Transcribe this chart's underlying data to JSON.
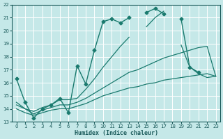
{
  "xlabel": "Humidex (Indice chaleur)",
  "bg_color": "#c5e8e8",
  "grid_color": "#ffffff",
  "line_color": "#1a7a6e",
  "xlim": [
    -0.5,
    23.5
  ],
  "ylim": [
    13,
    22
  ],
  "yticks": [
    13,
    14,
    15,
    16,
    17,
    18,
    19,
    20,
    21,
    22
  ],
  "xticks": [
    0,
    1,
    2,
    3,
    4,
    5,
    6,
    7,
    8,
    9,
    10,
    11,
    12,
    13,
    14,
    15,
    16,
    17,
    18,
    19,
    20,
    21,
    22,
    23
  ],
  "lines": [
    {
      "x": [
        0,
        1,
        2,
        3,
        4,
        5,
        6,
        7,
        8,
        9,
        10,
        11,
        12,
        13,
        15,
        16,
        17,
        19,
        20,
        21
      ],
      "y": [
        16.3,
        14.5,
        13.3,
        14.0,
        14.3,
        14.8,
        13.7,
        17.3,
        15.9,
        18.5,
        20.7,
        20.9,
        20.6,
        21.0,
        21.4,
        21.7,
        21.3,
        20.9,
        17.2,
        16.8
      ],
      "segments": [
        {
          "x": [
            0,
            1,
            2,
            3,
            4,
            5,
            6,
            7,
            8,
            9,
            10,
            11,
            12,
            13
          ],
          "y": [
            16.3,
            14.5,
            13.3,
            14.0,
            14.3,
            14.8,
            13.7,
            17.3,
            15.9,
            18.5,
            20.7,
            20.9,
            20.6,
            21.0
          ]
        },
        {
          "x": [
            15,
            16,
            17
          ],
          "y": [
            21.4,
            21.7,
            21.3
          ]
        },
        {
          "x": [
            19,
            20,
            21
          ],
          "y": [
            20.9,
            17.2,
            16.8
          ]
        }
      ],
      "marker": "D",
      "marker_size": 2.5,
      "linewidth": 1.0
    },
    {
      "x": [
        0,
        1,
        2,
        3,
        4,
        5,
        6,
        7,
        8,
        9,
        10,
        11,
        12,
        13,
        14,
        15,
        16,
        17,
        18,
        19,
        20,
        21,
        22,
        23
      ],
      "y": [
        14.0,
        13.7,
        13.5,
        13.7,
        13.9,
        14.0,
        14.0,
        14.2,
        14.4,
        14.7,
        15.0,
        15.2,
        15.4,
        15.6,
        15.7,
        15.9,
        16.0,
        16.2,
        16.3,
        16.4,
        16.5,
        16.6,
        16.7,
        16.5
      ],
      "linewidth": 0.9
    },
    {
      "x": [
        0,
        1,
        2,
        3,
        4,
        5,
        6,
        7,
        8,
        9,
        10,
        11,
        12,
        13,
        15,
        16,
        17,
        19,
        20,
        21,
        22,
        23
      ],
      "y": [
        14.5,
        14.0,
        13.8,
        14.1,
        14.3,
        14.7,
        14.7,
        14.8,
        15.5,
        16.3,
        17.2,
        18.0,
        18.8,
        19.5,
        20.3,
        21.0,
        21.5,
        18.9,
        17.2,
        16.7,
        16.4,
        16.5
      ],
      "segments": [
        {
          "x": [
            0,
            1,
            2,
            3,
            4,
            5,
            6,
            7,
            8,
            9,
            10,
            11,
            12,
            13
          ],
          "y": [
            14.5,
            14.0,
            13.8,
            14.1,
            14.3,
            14.7,
            14.7,
            14.8,
            15.5,
            16.3,
            17.2,
            18.0,
            18.8,
            19.5
          ]
        },
        {
          "x": [
            15,
            16,
            17
          ],
          "y": [
            20.3,
            21.0,
            21.5
          ]
        },
        {
          "x": [
            19,
            20,
            21,
            22,
            23
          ],
          "y": [
            18.9,
            17.2,
            16.7,
            16.4,
            16.5
          ]
        }
      ],
      "linewidth": 0.9
    },
    {
      "x": [
        0,
        1,
        2,
        3,
        4,
        5,
        6,
        7,
        8,
        9,
        10,
        11,
        12,
        13,
        14,
        15,
        16,
        17,
        18,
        19,
        20,
        21,
        22,
        23
      ],
      "y": [
        14.3,
        14.0,
        13.6,
        13.9,
        14.1,
        14.3,
        14.3,
        14.5,
        14.8,
        15.2,
        15.6,
        16.0,
        16.4,
        16.8,
        17.0,
        17.3,
        17.6,
        17.9,
        18.1,
        18.3,
        18.5,
        18.7,
        18.8,
        16.5
      ],
      "linewidth": 0.9
    }
  ]
}
